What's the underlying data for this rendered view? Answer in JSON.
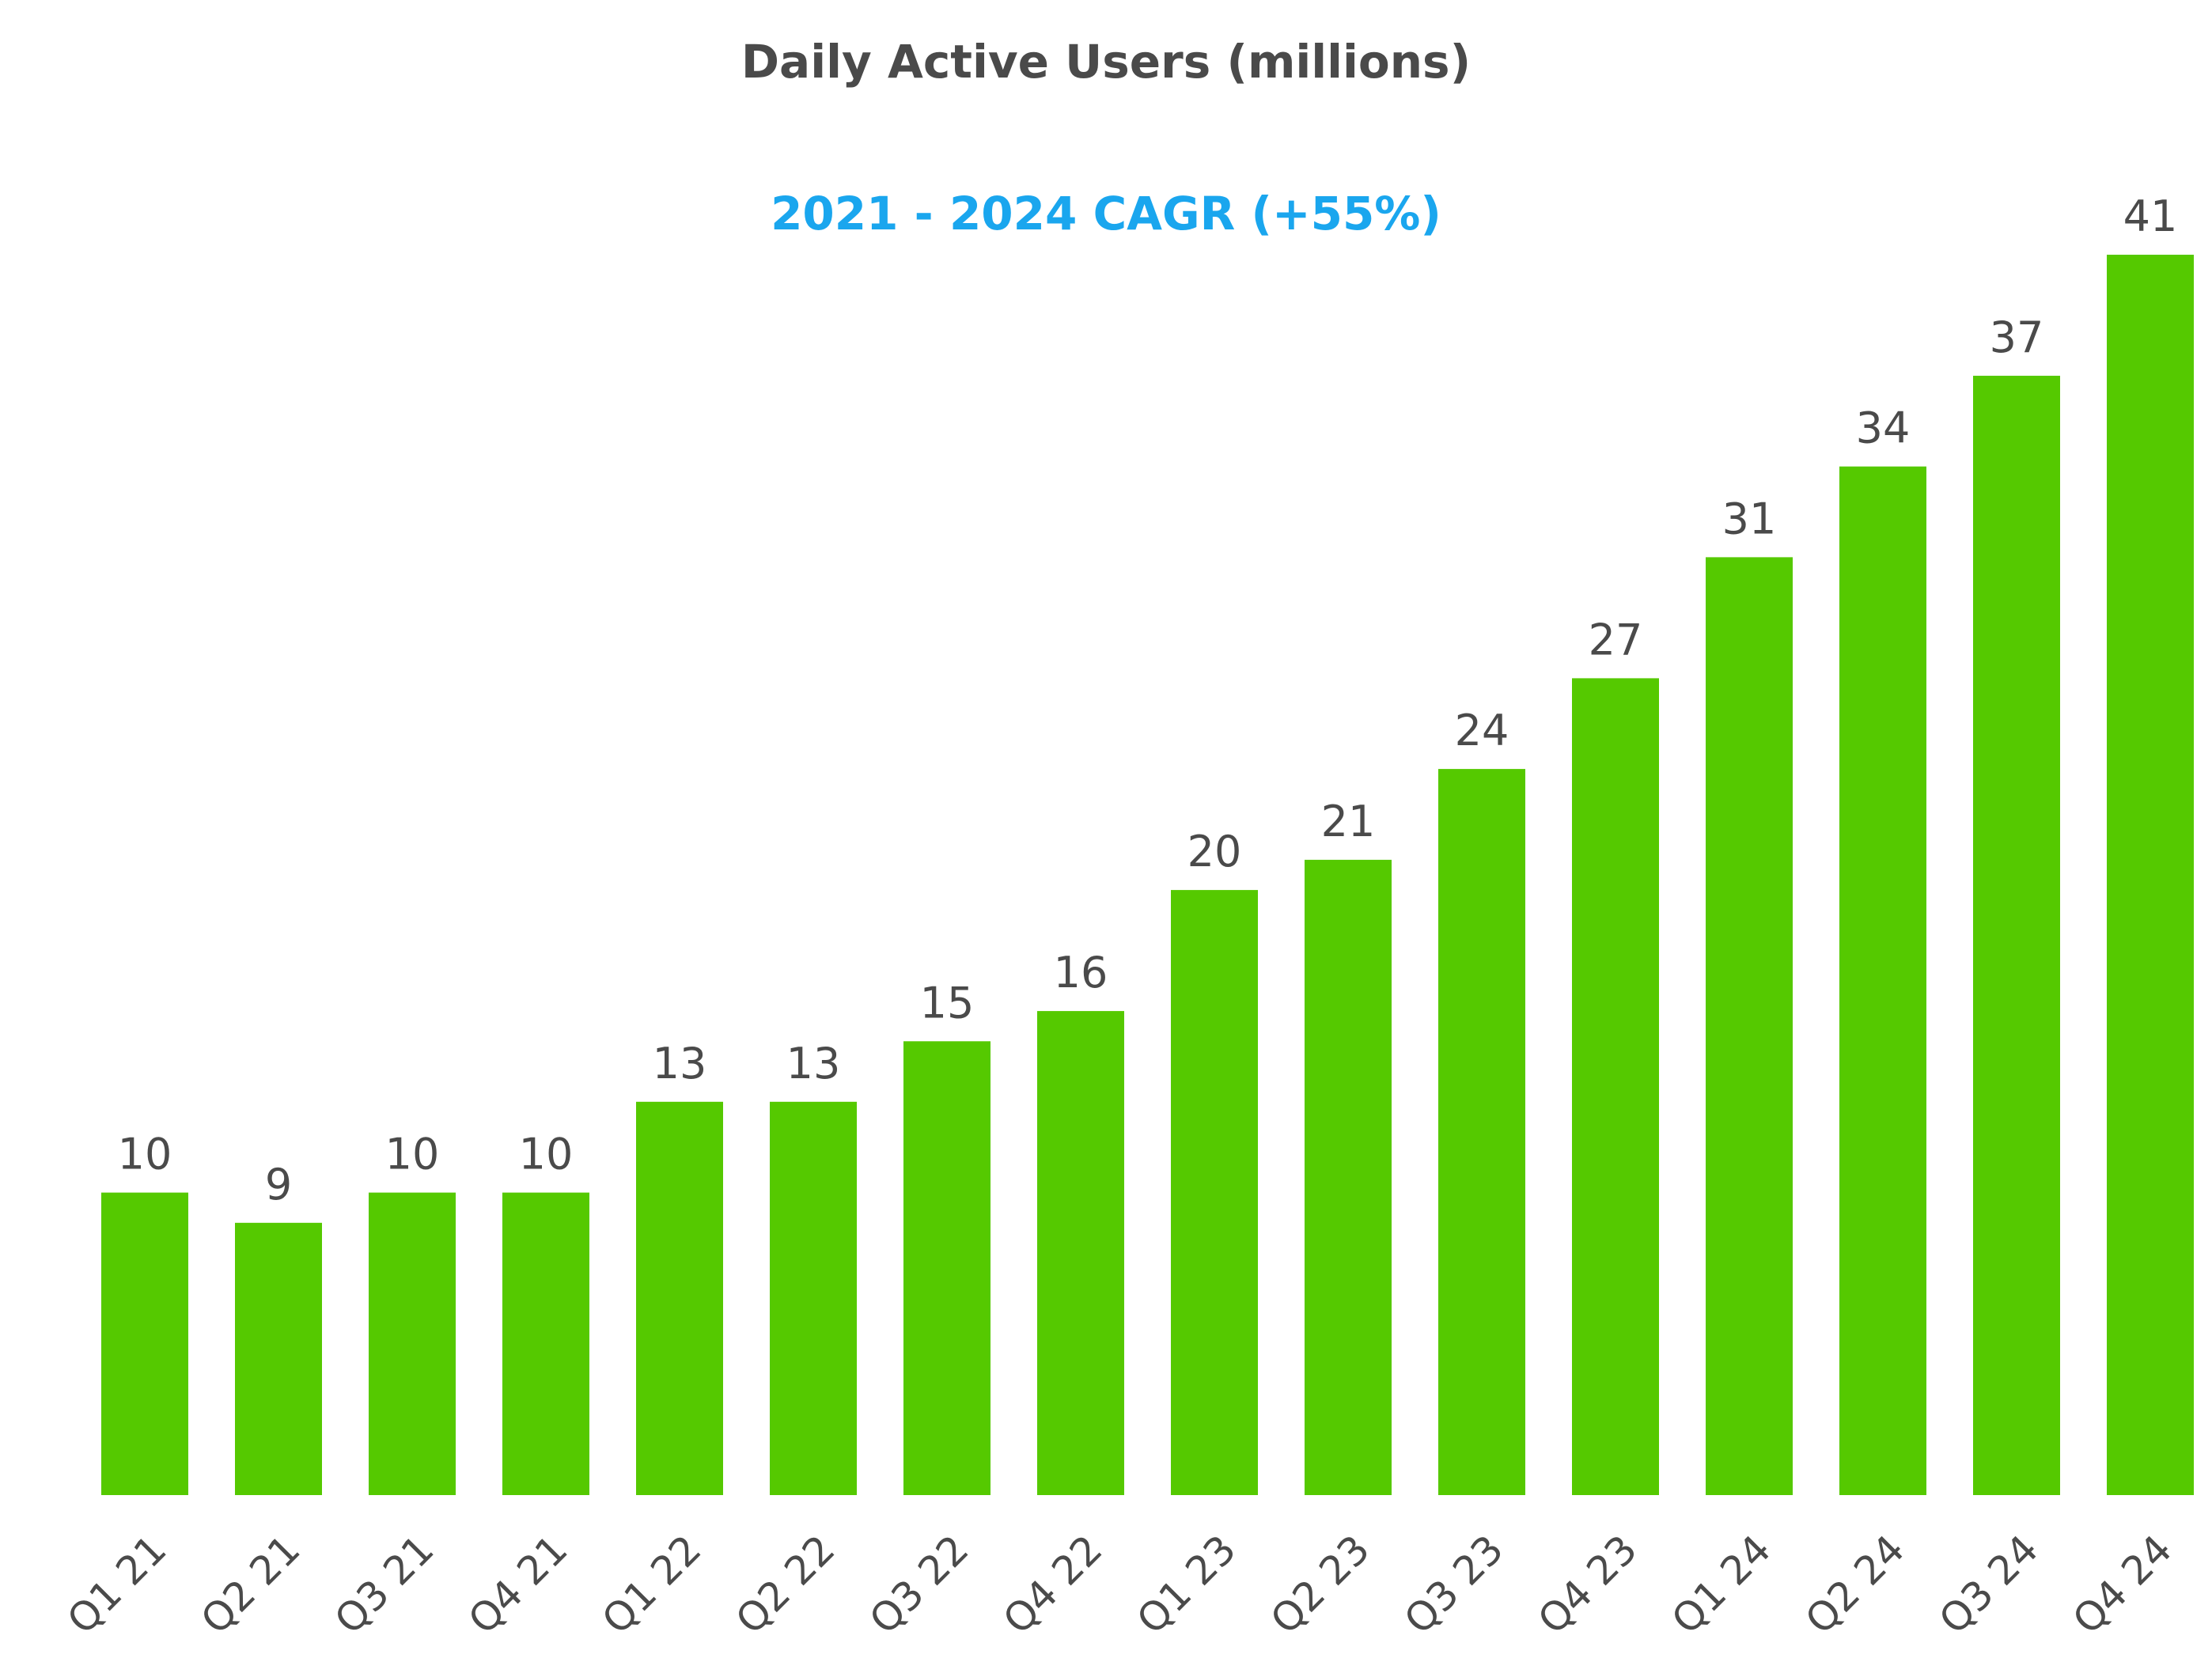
{
  "chart_data": {
    "type": "bar",
    "title": "Daily Active Users (millions)",
    "subtitle": "2021 - 2024 CAGR (+55%)",
    "xlabel": "",
    "ylabel": "",
    "categories": [
      "Q1 21",
      "Q2 21",
      "Q3 21",
      "Q4 21",
      "Q1 22",
      "Q2 22",
      "Q3 22",
      "Q4 22",
      "Q1 23",
      "Q2 23",
      "Q3 23",
      "Q4 23",
      "Q1 24",
      "Q2 24",
      "Q3 24",
      "Q4 24"
    ],
    "values": [
      10,
      9,
      10,
      10,
      13,
      13,
      15,
      16,
      20,
      21,
      24,
      27,
      31,
      34,
      37,
      41
    ],
    "data_labels": [
      "10",
      "9",
      "10",
      "10",
      "13",
      "13",
      "15",
      "16",
      "20",
      "21",
      "24",
      "27",
      "31",
      "34",
      "37",
      "41"
    ],
    "ylim": [
      0,
      41
    ],
    "grid": false,
    "legend": "none"
  },
  "colors": {
    "bar": "#55c900",
    "subtitle": "#1aa6ee",
    "text": "#4a4a4a"
  }
}
